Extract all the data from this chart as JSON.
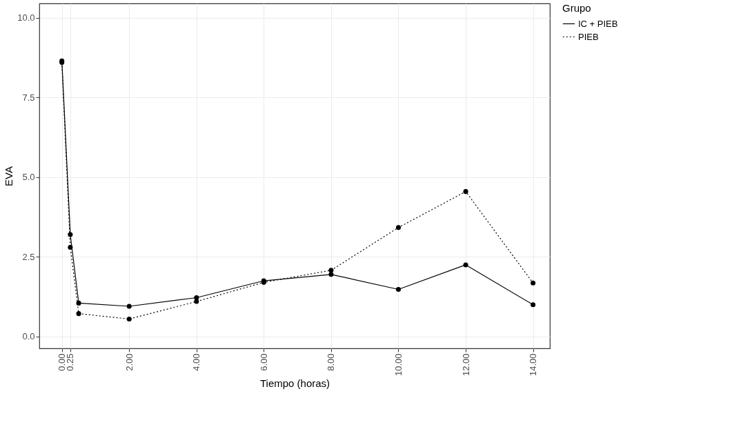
{
  "chart_data": {
    "type": "line",
    "xlabel": "Tiempo (horas)",
    "ylabel": "EVA",
    "legend_title": "Grupo",
    "x": [
      0,
      0.25,
      0.5,
      2,
      4,
      6,
      8,
      10,
      12,
      14
    ],
    "series": [
      {
        "name": "IC + PIEB",
        "color": "#000000",
        "line_style": "solid",
        "values": [
          8.65,
          3.2,
          1.05,
          0.95,
          1.22,
          1.75,
          1.95,
          1.48,
          2.25,
          1.0
        ]
      },
      {
        "name": "PIEB",
        "color": "#000000",
        "line_style": "dotted",
        "values": [
          8.6,
          2.8,
          0.72,
          0.55,
          1.1,
          1.7,
          2.08,
          3.42,
          4.55,
          1.68
        ]
      }
    ],
    "xlim": [
      -0.67,
      14.5
    ],
    "ylim": [
      -0.37,
      10.45
    ],
    "xticks": [
      {
        "value": 0,
        "label": "0.00"
      },
      {
        "value": 0.25,
        "label": "0.25"
      },
      {
        "value": 2,
        "label": "2.00"
      },
      {
        "value": 4,
        "label": "4.00"
      },
      {
        "value": 6,
        "label": "6.00"
      },
      {
        "value": 8,
        "label": "8.00"
      },
      {
        "value": 10,
        "label": "10.00"
      },
      {
        "value": 12,
        "label": "12.00"
      },
      {
        "value": 14,
        "label": "14.00"
      }
    ],
    "yticks": [
      {
        "value": 0,
        "label": "0.0"
      },
      {
        "value": 2.5,
        "label": "2.5"
      },
      {
        "value": 5,
        "label": "5.0"
      },
      {
        "value": 7.5,
        "label": "7.5"
      },
      {
        "value": 10,
        "label": "10.0"
      }
    ],
    "grid": true,
    "legend": "right",
    "marker": "circle"
  }
}
